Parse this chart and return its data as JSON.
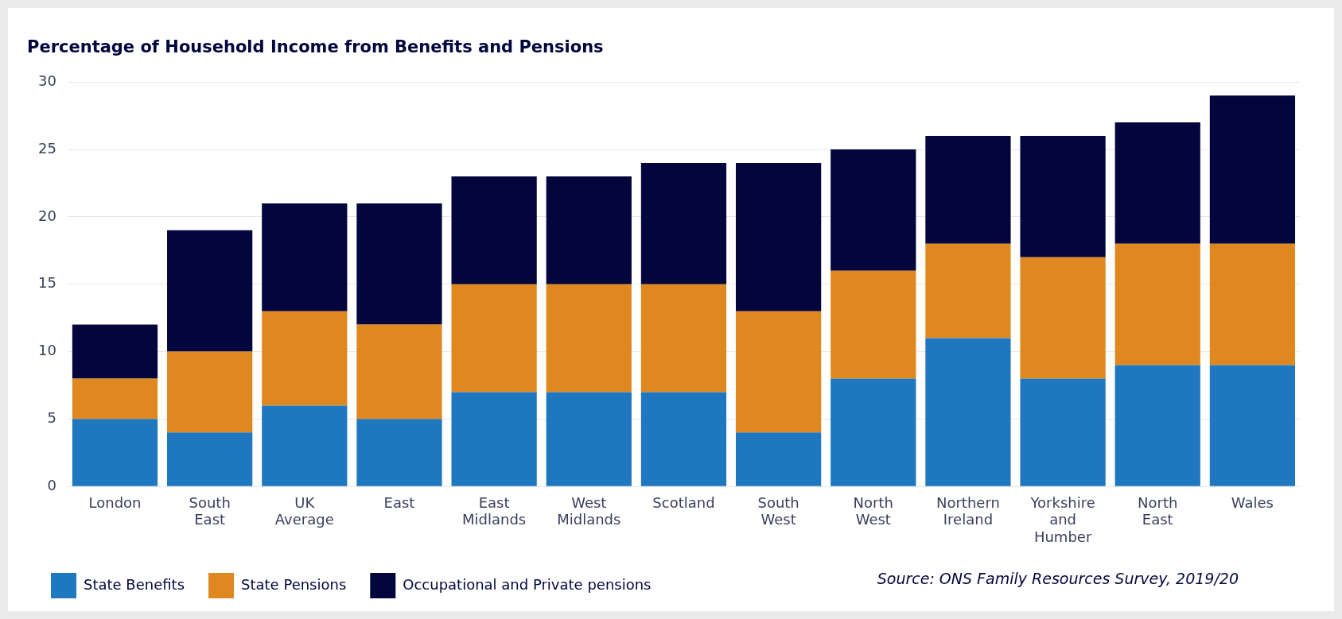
{
  "chart_data": {
    "type": "bar",
    "title": "Percentage of Household Income from Benefits and Pensions",
    "categories": [
      "London",
      "South East",
      "UK Average",
      "East",
      "East Midlands",
      "West Midlands",
      "Scotland",
      "South West",
      "North West",
      "Northern Ireland",
      "Yorkshire and Humber",
      "North East",
      "Wales"
    ],
    "series": [
      {
        "name": "State Benefits",
        "color": "#1f77bf",
        "values": [
          5,
          4,
          6,
          5,
          7,
          7,
          7,
          4,
          8,
          11,
          8,
          9,
          9
        ]
      },
      {
        "name": "State Pensions",
        "color": "#e08820",
        "values": [
          3,
          6,
          7,
          7,
          8,
          8,
          8,
          9,
          8,
          7,
          9,
          9,
          9
        ]
      },
      {
        "name": "Occupational and Private pensions",
        "color": "#02063d",
        "values": [
          4,
          9,
          8,
          9,
          8,
          8,
          9,
          11,
          9,
          8,
          9,
          9,
          11
        ]
      }
    ],
    "stacked": true,
    "ylim": [
      0,
      30
    ],
    "yticks": [
      0,
      5,
      10,
      15,
      20,
      25,
      30
    ],
    "grid": "y",
    "legend": "bottom left",
    "annotations": [
      "Source: ONS Family Resources Survey, 2019/20"
    ]
  }
}
